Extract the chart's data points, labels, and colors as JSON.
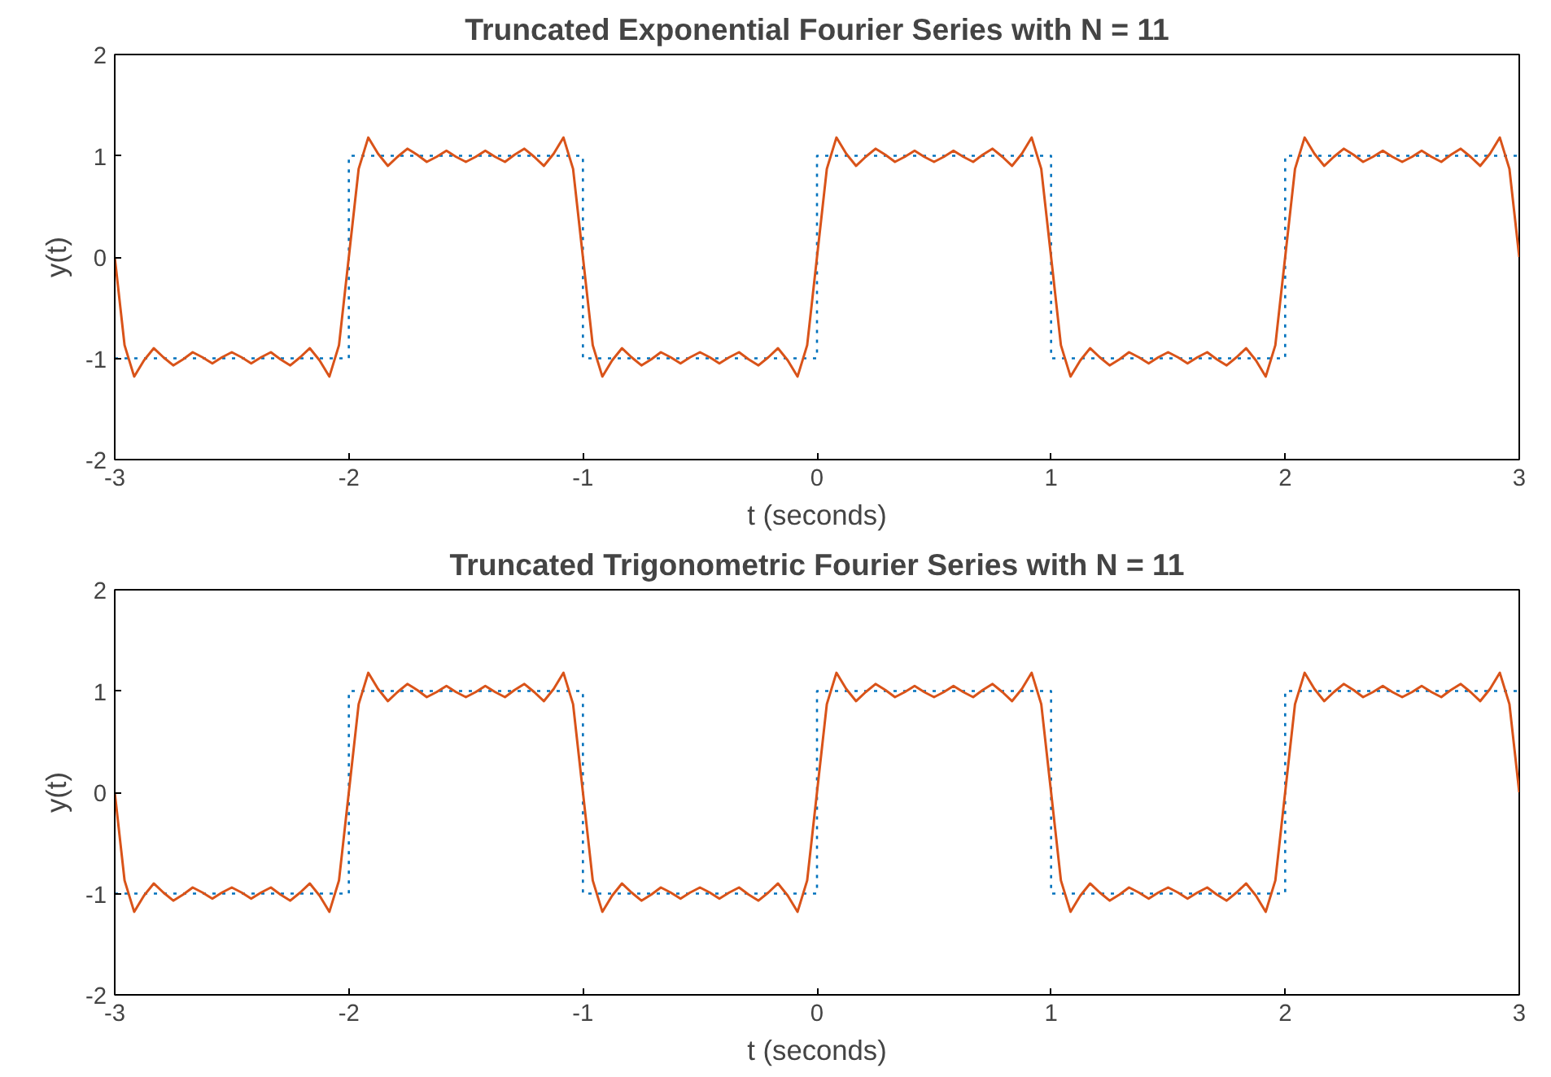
{
  "chart_data": [
    {
      "type": "line",
      "title": "Truncated Exponential Fourier Series with N = 11",
      "xlabel": "t (seconds)",
      "ylabel": "y(t)",
      "xlim": [
        -3,
        3
      ],
      "ylim": [
        -2,
        2
      ],
      "xticks": [
        -3,
        -2,
        -1,
        0,
        1,
        2,
        3
      ],
      "yticks": [
        -2,
        -1,
        0,
        1,
        2
      ],
      "grid": false,
      "x": [
        -3,
        -2.958,
        -2.917,
        -2.875,
        -2.833,
        -2.792,
        -2.75,
        -2.708,
        -2.667,
        -2.625,
        -2.583,
        -2.542,
        -2.5,
        -2.458,
        -2.417,
        -2.375,
        -2.333,
        -2.292,
        -2.25,
        -2.208,
        -2.167,
        -2.125,
        -2.083,
        -2.042,
        -2,
        -1.958,
        -1.917,
        -1.875,
        -1.833,
        -1.792,
        -1.75,
        -1.708,
        -1.667,
        -1.625,
        -1.583,
        -1.542,
        -1.5,
        -1.458,
        -1.417,
        -1.375,
        -1.333,
        -1.292,
        -1.25,
        -1.208,
        -1.167,
        -1.125,
        -1.083,
        -1.042,
        -1,
        -0.958,
        -0.917,
        -0.875,
        -0.833,
        -0.792,
        -0.75,
        -0.708,
        -0.667,
        -0.625,
        -0.583,
        -0.542,
        -0.5,
        -0.458,
        -0.417,
        -0.375,
        -0.333,
        -0.292,
        -0.25,
        -0.208,
        -0.167,
        -0.125,
        -0.083,
        -0.042,
        0,
        0.042,
        0.083,
        0.125,
        0.167,
        0.208,
        0.25,
        0.292,
        0.333,
        0.375,
        0.417,
        0.458,
        0.5,
        0.542,
        0.583,
        0.625,
        0.667,
        0.708,
        0.75,
        0.792,
        0.833,
        0.875,
        0.917,
        0.958,
        1,
        1.042,
        1.083,
        1.125,
        1.167,
        1.208,
        1.25,
        1.292,
        1.333,
        1.375,
        1.417,
        1.458,
        1.5,
        1.542,
        1.583,
        1.625,
        1.667,
        1.708,
        1.75,
        1.792,
        1.833,
        1.875,
        1.917,
        1.958,
        2,
        2.042,
        2.083,
        2.125,
        2.167,
        2.208,
        2.25,
        2.292,
        2.333,
        2.375,
        2.417,
        2.458,
        2.5,
        2.542,
        2.583,
        2.625,
        2.667,
        2.708,
        2.75,
        2.792,
        2.833,
        2.875,
        2.917,
        2.958,
        3
      ],
      "series": [
        {
          "line_style": "dotted",
          "color": "#0072bd",
          "x": [
            -3,
            -2,
            -2,
            -1,
            -1,
            0,
            0,
            1,
            1,
            2,
            2,
            3
          ],
          "values": [
            -1,
            -1,
            1,
            1,
            -1,
            -1,
            1,
            1,
            -1,
            -1,
            1,
            1
          ]
        },
        {
          "line_style": "solid",
          "color": "#d95319",
          "values": [
            0,
            -0.87,
            -1.18,
            -1.02,
            -0.9,
            -0.99,
            -1.07,
            -1.01,
            -0.94,
            -0.99,
            -1.05,
            -0.99,
            -0.94,
            -0.99,
            -1.05,
            -0.99,
            -0.94,
            -1.01,
            -1.07,
            -0.99,
            -0.9,
            -1.02,
            -1.18,
            -0.87,
            0,
            0.87,
            1.18,
            1.02,
            0.9,
            0.99,
            1.07,
            1.01,
            0.94,
            0.99,
            1.05,
            0.99,
            0.94,
            0.99,
            1.05,
            0.99,
            0.94,
            1.01,
            1.07,
            0.99,
            0.9,
            1.02,
            1.18,
            0.87,
            0,
            -0.87,
            -1.18,
            -1.02,
            -0.9,
            -0.99,
            -1.07,
            -1.01,
            -0.94,
            -0.99,
            -1.05,
            -0.99,
            -0.94,
            -0.99,
            -1.05,
            -0.99,
            -0.94,
            -1.01,
            -1.07,
            -0.99,
            -0.9,
            -1.02,
            -1.18,
            -0.87,
            0,
            0.87,
            1.18,
            1.02,
            0.9,
            0.99,
            1.07,
            1.01,
            0.94,
            0.99,
            1.05,
            0.99,
            0.94,
            0.99,
            1.05,
            0.99,
            0.94,
            1.01,
            1.07,
            0.99,
            0.9,
            1.02,
            1.18,
            0.87,
            0,
            -0.87,
            -1.18,
            -1.02,
            -0.9,
            -0.99,
            -1.07,
            -1.01,
            -0.94,
            -0.99,
            -1.05,
            -0.99,
            -0.94,
            -0.99,
            -1.05,
            -0.99,
            -0.94,
            -1.01,
            -1.07,
            -0.99,
            -0.9,
            -1.02,
            -1.18,
            -0.87,
            0,
            0.87,
            1.18,
            1.02,
            0.9,
            0.99,
            1.07,
            1.01,
            0.94,
            0.99,
            1.05,
            0.99,
            0.94,
            0.99,
            1.05,
            0.99,
            0.94,
            1.01,
            1.07,
            0.99,
            0.9,
            1.02,
            1.18,
            0.87,
            0
          ]
        }
      ]
    },
    {
      "type": "line",
      "title": "Truncated Trigonometric Fourier Series with N = 11",
      "xlabel": "t (seconds)",
      "ylabel": "y(t)",
      "xlim": [
        -3,
        3
      ],
      "ylim": [
        -2,
        2
      ],
      "xticks": [
        -3,
        -2,
        -1,
        0,
        1,
        2,
        3
      ],
      "yticks": [
        -2,
        -1,
        0,
        1,
        2
      ],
      "grid": false,
      "x": [
        -3,
        -2.958,
        -2.917,
        -2.875,
        -2.833,
        -2.792,
        -2.75,
        -2.708,
        -2.667,
        -2.625,
        -2.583,
        -2.542,
        -2.5,
        -2.458,
        -2.417,
        -2.375,
        -2.333,
        -2.292,
        -2.25,
        -2.208,
        -2.167,
        -2.125,
        -2.083,
        -2.042,
        -2,
        -1.958,
        -1.917,
        -1.875,
        -1.833,
        -1.792,
        -1.75,
        -1.708,
        -1.667,
        -1.625,
        -1.583,
        -1.542,
        -1.5,
        -1.458,
        -1.417,
        -1.375,
        -1.333,
        -1.292,
        -1.25,
        -1.208,
        -1.167,
        -1.125,
        -1.083,
        -1.042,
        -1,
        -0.958,
        -0.917,
        -0.875,
        -0.833,
        -0.792,
        -0.75,
        -0.708,
        -0.667,
        -0.625,
        -0.583,
        -0.542,
        -0.5,
        -0.458,
        -0.417,
        -0.375,
        -0.333,
        -0.292,
        -0.25,
        -0.208,
        -0.167,
        -0.125,
        -0.083,
        -0.042,
        0,
        0.042,
        0.083,
        0.125,
        0.167,
        0.208,
        0.25,
        0.292,
        0.333,
        0.375,
        0.417,
        0.458,
        0.5,
        0.542,
        0.583,
        0.625,
        0.667,
        0.708,
        0.75,
        0.792,
        0.833,
        0.875,
        0.917,
        0.958,
        1,
        1.042,
        1.083,
        1.125,
        1.167,
        1.208,
        1.25,
        1.292,
        1.333,
        1.375,
        1.417,
        1.458,
        1.5,
        1.542,
        1.583,
        1.625,
        1.667,
        1.708,
        1.75,
        1.792,
        1.833,
        1.875,
        1.917,
        1.958,
        2,
        2.042,
        2.083,
        2.125,
        2.167,
        2.208,
        2.25,
        2.292,
        2.333,
        2.375,
        2.417,
        2.458,
        2.5,
        2.542,
        2.583,
        2.625,
        2.667,
        2.708,
        2.75,
        2.792,
        2.833,
        2.875,
        2.917,
        2.958,
        3
      ],
      "series": [
        {
          "line_style": "dotted",
          "color": "#0072bd",
          "x": [
            -3,
            -2,
            -2,
            -1,
            -1,
            0,
            0,
            1,
            1,
            2,
            2,
            3
          ],
          "values": [
            -1,
            -1,
            1,
            1,
            -1,
            -1,
            1,
            1,
            -1,
            -1,
            1,
            1
          ]
        },
        {
          "line_style": "solid",
          "color": "#d95319",
          "values": [
            0,
            -0.87,
            -1.18,
            -1.02,
            -0.9,
            -0.99,
            -1.07,
            -1.01,
            -0.94,
            -0.99,
            -1.05,
            -0.99,
            -0.94,
            -0.99,
            -1.05,
            -0.99,
            -0.94,
            -1.01,
            -1.07,
            -0.99,
            -0.9,
            -1.02,
            -1.18,
            -0.87,
            0,
            0.87,
            1.18,
            1.02,
            0.9,
            0.99,
            1.07,
            1.01,
            0.94,
            0.99,
            1.05,
            0.99,
            0.94,
            0.99,
            1.05,
            0.99,
            0.94,
            1.01,
            1.07,
            0.99,
            0.9,
            1.02,
            1.18,
            0.87,
            0,
            -0.87,
            -1.18,
            -1.02,
            -0.9,
            -0.99,
            -1.07,
            -1.01,
            -0.94,
            -0.99,
            -1.05,
            -0.99,
            -0.94,
            -0.99,
            -1.05,
            -0.99,
            -0.94,
            -1.01,
            -1.07,
            -0.99,
            -0.9,
            -1.02,
            -1.18,
            -0.87,
            0,
            0.87,
            1.18,
            1.02,
            0.9,
            0.99,
            1.07,
            1.01,
            0.94,
            0.99,
            1.05,
            0.99,
            0.94,
            0.99,
            1.05,
            0.99,
            0.94,
            1.01,
            1.07,
            0.99,
            0.9,
            1.02,
            1.18,
            0.87,
            0,
            -0.87,
            -1.18,
            -1.02,
            -0.9,
            -0.99,
            -1.07,
            -1.01,
            -0.94,
            -0.99,
            -1.05,
            -0.99,
            -0.94,
            -0.99,
            -1.05,
            -0.99,
            -0.94,
            -1.01,
            -1.07,
            -0.99,
            -0.9,
            -1.02,
            -1.18,
            -0.87,
            0,
            0.87,
            1.18,
            1.02,
            0.9,
            0.99,
            1.07,
            1.01,
            0.94,
            0.99,
            1.05,
            0.99,
            0.94,
            0.99,
            1.05,
            0.99,
            0.94,
            1.01,
            1.07,
            0.99,
            0.9,
            1.02,
            1.18,
            0.87,
            0
          ]
        }
      ]
    }
  ]
}
